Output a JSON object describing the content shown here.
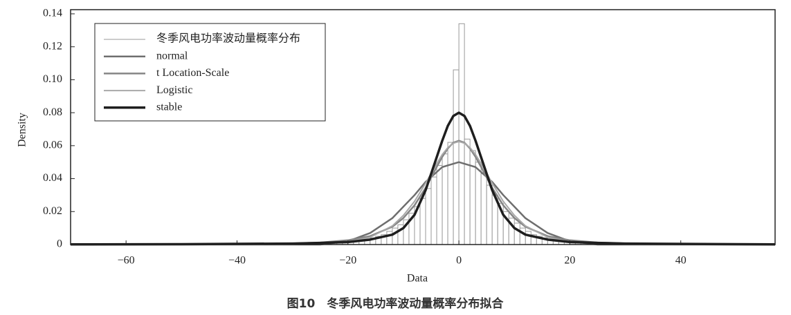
{
  "chart_data": {
    "type": "histogram",
    "xlabel": "Data",
    "ylabel": "Density",
    "caption": "图10　冬季风电功率波动量概率分布拟合",
    "xlim": [
      -70,
      57
    ],
    "ylim": [
      0,
      0.14
    ],
    "xticks": [
      {
        "value": -60,
        "label": "−60"
      },
      {
        "value": -40,
        "label": "−40"
      },
      {
        "value": -20,
        "label": "−20"
      },
      0,
      20,
      40
    ],
    "yticks": [
      0,
      0.02,
      0.04,
      0.06,
      0.08,
      {
        "value": 0.1,
        "label": "0.10"
      },
      0.12,
      0.14
    ],
    "legend": "upper left",
    "histogram": {
      "name": "冬季风电功率波动量概率分布",
      "color": "#999999",
      "bins": [
        -22,
        -21,
        -20,
        -19,
        -18,
        -17,
        -16,
        -15,
        -14,
        -13,
        -12,
        -11,
        -10,
        -9,
        -8,
        -7,
        -6,
        -5,
        -4,
        -3,
        -2,
        -1,
        0,
        1,
        2,
        3,
        4,
        5,
        6,
        7,
        8,
        9,
        10,
        11,
        12,
        13,
        14,
        15,
        16,
        17,
        18,
        19,
        20,
        21,
        22
      ],
      "values": [
        0.001,
        0.001,
        0.002,
        0.002,
        0.003,
        0.003,
        0.004,
        0.005,
        0.006,
        0.008,
        0.01,
        0.012,
        0.015,
        0.019,
        0.023,
        0.028,
        0.034,
        0.041,
        0.048,
        0.055,
        0.062,
        0.106,
        0.134,
        0.064,
        0.057,
        0.05,
        0.043,
        0.036,
        0.03,
        0.025,
        0.02,
        0.016,
        0.013,
        0.01,
        0.008,
        0.006,
        0.005,
        0.004,
        0.003,
        0.003,
        0.002,
        0.002,
        0.001,
        0.001
      ]
    },
    "curve_x": [
      -70,
      -50,
      -30,
      -25,
      -20,
      -16,
      -12,
      -10,
      -8,
      -6,
      -4,
      -3,
      -2,
      -1,
      0,
      1,
      2,
      3,
      4,
      6,
      8,
      10,
      12,
      16,
      20,
      25,
      30,
      50,
      57
    ],
    "series": [
      {
        "name": "normal",
        "color": "#6e6e6e",
        "line_width": 2.5,
        "values": [
          0,
          0,
          0,
          0,
          0.002,
          0.007,
          0.016,
          0.023,
          0.03,
          0.038,
          0.044,
          0.047,
          0.048,
          0.049,
          0.05,
          0.049,
          0.048,
          0.047,
          0.044,
          0.038,
          0.03,
          0.023,
          0.016,
          0.007,
          0.002,
          0,
          0,
          0,
          0
        ]
      },
      {
        "name": "t Location-Scale",
        "color": "#858585",
        "line_width": 2.5,
        "values": [
          0,
          0.0001,
          0.0007,
          0.0012,
          0.0026,
          0.0051,
          0.0108,
          0.0161,
          0.0238,
          0.0344,
          0.0471,
          0.0532,
          0.0583,
          0.0618,
          0.063,
          0.0618,
          0.0583,
          0.0532,
          0.0471,
          0.0344,
          0.0238,
          0.0161,
          0.0108,
          0.0051,
          0.0026,
          0.0012,
          0.0007,
          0.0001,
          0.0001
        ]
      },
      {
        "name": "Logistic",
        "color": "#a8a8a8",
        "line_width": 2,
        "values": [
          0,
          0,
          0.0001,
          0.0005,
          0.0017,
          0.0044,
          0.0113,
          0.0177,
          0.0262,
          0.0372,
          0.0492,
          0.0546,
          0.0588,
          0.0615,
          0.0625,
          0.0615,
          0.0588,
          0.0546,
          0.0492,
          0.0372,
          0.0262,
          0.0177,
          0.0113,
          0.0044,
          0.0017,
          0.0005,
          0.0001,
          0,
          0
        ]
      },
      {
        "name": "stable",
        "color": "#1e1e1e",
        "line_width": 3.5,
        "values": [
          0.0001,
          0.0002,
          0.0006,
          0.001,
          0.0015,
          0.003,
          0.006,
          0.01,
          0.018,
          0.033,
          0.053,
          0.063,
          0.072,
          0.078,
          0.08,
          0.078,
          0.072,
          0.063,
          0.053,
          0.033,
          0.018,
          0.01,
          0.006,
          0.003,
          0.0015,
          0.001,
          0.0006,
          0.0002,
          0.0001
        ]
      }
    ]
  }
}
